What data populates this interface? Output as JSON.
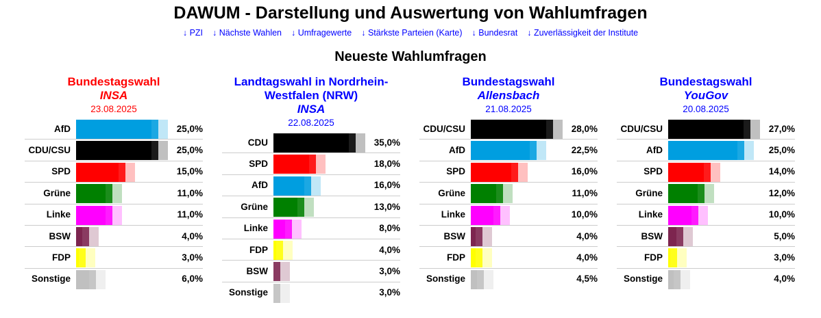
{
  "header": {
    "title": "DAWUM - Darstellung und Auswertung von Wahlumfragen",
    "links": [
      "↓ PZI",
      "↓ Nächste Wahlen",
      "↓ Umfragewerte",
      "↓ Stärkste Parteien (Karte)",
      "↓ Bundesrat",
      "↓ Zuverlässigkeit der Institute"
    ],
    "section_title": "Neueste Wahlumfragen"
  },
  "party_colors": {
    "AfD": "#009ee0",
    "CDU/CSU": "#000000",
    "CDU": "#000000",
    "SPD": "#ff0000",
    "Grüne": "#008000",
    "Linke": "#ff00ff",
    "BSW": "#7d254f",
    "FDP": "#ffff00",
    "Sonstige": "#c0c0c0"
  },
  "polls": [
    {
      "election": "Bundestagswahl",
      "institute": "INSA",
      "date": "23.08.2025",
      "color": "#ff0000",
      "results": [
        {
          "party": "AfD",
          "value": 25.0,
          "label": "25,0%"
        },
        {
          "party": "CDU/CSU",
          "value": 25.0,
          "label": "25,0%"
        },
        {
          "party": "SPD",
          "value": 15.0,
          "label": "15,0%"
        },
        {
          "party": "Grüne",
          "value": 11.0,
          "label": "11,0%"
        },
        {
          "party": "Linke",
          "value": 11.0,
          "label": "11,0%"
        },
        {
          "party": "BSW",
          "value": 4.0,
          "label": "4,0%"
        },
        {
          "party": "FDP",
          "value": 3.0,
          "label": "3,0%"
        },
        {
          "party": "Sonstige",
          "value": 6.0,
          "label": "6,0%"
        }
      ]
    },
    {
      "election": "Landtagswahl in Nordrhein-Westfalen (NRW)",
      "institute": "INSA",
      "date": "22.08.2025",
      "color": "#0000ff",
      "results": [
        {
          "party": "CDU",
          "value": 35.0,
          "label": "35,0%"
        },
        {
          "party": "SPD",
          "value": 18.0,
          "label": "18,0%"
        },
        {
          "party": "AfD",
          "value": 16.0,
          "label": "16,0%"
        },
        {
          "party": "Grüne",
          "value": 13.0,
          "label": "13,0%"
        },
        {
          "party": "Linke",
          "value": 8.0,
          "label": "8,0%"
        },
        {
          "party": "FDP",
          "value": 4.0,
          "label": "4,0%"
        },
        {
          "party": "BSW",
          "value": 3.0,
          "label": "3,0%"
        },
        {
          "party": "Sonstige",
          "value": 3.0,
          "label": "3,0%"
        }
      ]
    },
    {
      "election": "Bundestagswahl",
      "institute": "Allensbach",
      "date": "21.08.2025",
      "color": "#0000ff",
      "results": [
        {
          "party": "CDU/CSU",
          "value": 28.0,
          "label": "28,0%"
        },
        {
          "party": "AfD",
          "value": 22.5,
          "label": "22,5%"
        },
        {
          "party": "SPD",
          "value": 16.0,
          "label": "16,0%"
        },
        {
          "party": "Grüne",
          "value": 11.0,
          "label": "11,0%"
        },
        {
          "party": "Linke",
          "value": 10.0,
          "label": "10,0%"
        },
        {
          "party": "BSW",
          "value": 4.0,
          "label": "4,0%"
        },
        {
          "party": "FDP",
          "value": 4.0,
          "label": "4,0%"
        },
        {
          "party": "Sonstige",
          "value": 4.5,
          "label": "4,5%"
        }
      ]
    },
    {
      "election": "Bundestagswahl",
      "institute": "YouGov",
      "date": "20.08.2025",
      "color": "#0000ff",
      "results": [
        {
          "party": "CDU/CSU",
          "value": 27.0,
          "label": "27,0%"
        },
        {
          "party": "AfD",
          "value": 25.0,
          "label": "25,0%"
        },
        {
          "party": "SPD",
          "value": 14.0,
          "label": "14,0%"
        },
        {
          "party": "Grüne",
          "value": 12.0,
          "label": "12,0%"
        },
        {
          "party": "Linke",
          "value": 10.0,
          "label": "10,0%"
        },
        {
          "party": "BSW",
          "value": 5.0,
          "label": "5,0%"
        },
        {
          "party": "FDP",
          "value": 3.0,
          "label": "3,0%"
        },
        {
          "party": "Sonstige",
          "value": 4.0,
          "label": "4,0%"
        }
      ]
    }
  ]
}
